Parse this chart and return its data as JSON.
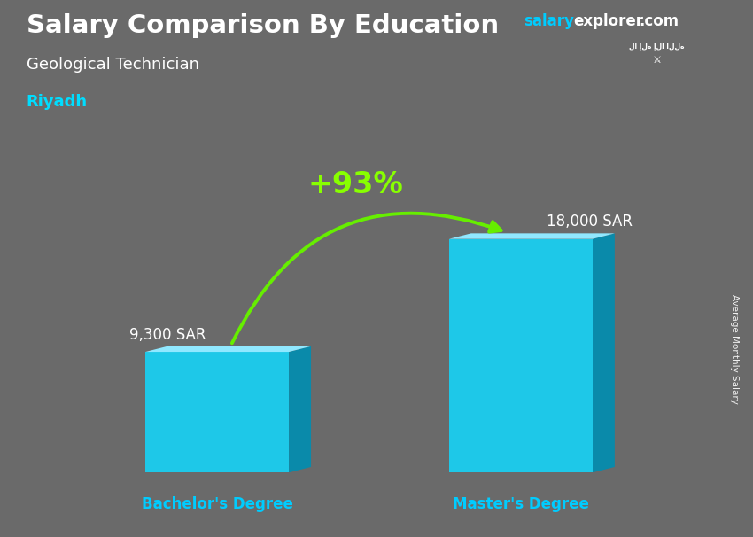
{
  "title": "Salary Comparison By Education",
  "subtitle_job": "Geological Technician",
  "subtitle_city": "Riyadh",
  "website_salary": "salary",
  "website_explorer": "explorer",
  "website_com": ".com",
  "ylabel_rotated": "Average Monthly Salary",
  "categories": [
    "Bachelor's Degree",
    "Master's Degree"
  ],
  "values": [
    9300,
    18000
  ],
  "value_labels": [
    "9,300 SAR",
    "18,000 SAR"
  ],
  "pct_change": "+93%",
  "bar_color_face": "#1EC8E8",
  "bar_color_top": "#90E8FF",
  "bar_color_side": "#0A8AAA",
  "arrow_color": "#66EE00",
  "background_color": "#6a6a6a",
  "title_color": "#FFFFFF",
  "subtitle_job_color": "#FFFFFF",
  "subtitle_city_color": "#00DDFF",
  "xticklabel_color": "#00CCFF",
  "salary_color": "#00CCFF",
  "pct_color": "#88FF00",
  "flag_bg": "#3aaa3a",
  "ylim": [
    0,
    24000
  ],
  "fig_width": 8.5,
  "fig_height": 6.06,
  "dpi": 100
}
